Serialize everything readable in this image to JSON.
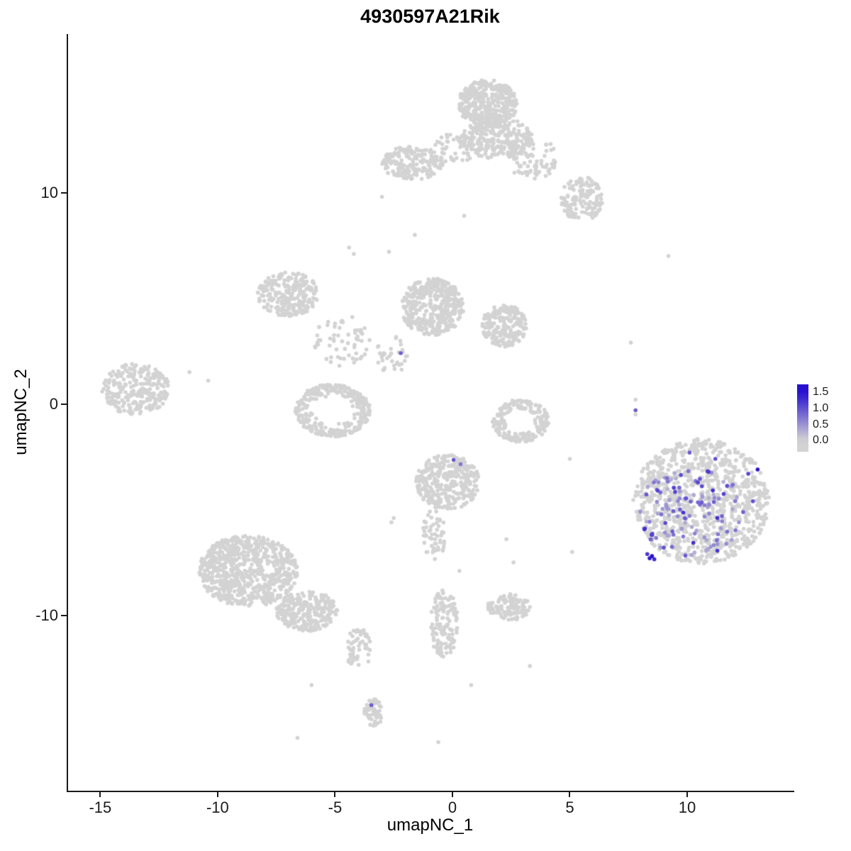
{
  "chart_data": {
    "type": "scatter",
    "title": "4930597A21Rik",
    "xlabel": "umapNC_1",
    "ylabel": "umapNC_2",
    "xlim": [
      -16.4,
      14.5
    ],
    "ylim": [
      -18.3,
      17.5
    ],
    "x_ticks": [
      "-15",
      "-10",
      "-5",
      "0",
      "5",
      "10"
    ],
    "x_tick_values": [
      -15,
      -10,
      -5,
      0,
      5,
      10
    ],
    "y_ticks": [
      "10",
      "0",
      "-10"
    ],
    "y_tick_values": [
      10,
      0,
      -10
    ],
    "grid": false,
    "point_radius_px": 2.8,
    "colors": {
      "low": "#D3D3D3",
      "high": "#2810D0",
      "axis": "#1a1a1a"
    },
    "value_domain": [
      0,
      1.5
    ],
    "legend": {
      "position": "right",
      "labels": [
        "1.5",
        "1.0",
        "0.5",
        "0.0"
      ],
      "values": [
        1.5,
        1.0,
        0.5,
        0.0
      ],
      "scale_min": -0.35,
      "scale_max": 1.75
    },
    "clusters": [
      {
        "name": "top-main-upper",
        "cx": 1.5,
        "cy": 14.2,
        "rx": 1.25,
        "ry": 1.15,
        "n": 380,
        "shape": "blob"
      },
      {
        "name": "top-main-lower",
        "cx": 1.9,
        "cy": 12.6,
        "rx": 1.5,
        "ry": 1.0,
        "n": 260,
        "shape": "blob"
      },
      {
        "name": "top-right-trail",
        "cx": 3.4,
        "cy": 11.6,
        "rx": 1.1,
        "ry": 1.0,
        "n": 70,
        "shape": "blob"
      },
      {
        "name": "top-right-cluster",
        "cx": 5.5,
        "cy": 9.7,
        "rx": 0.9,
        "ry": 1.05,
        "n": 150,
        "shape": "blob"
      },
      {
        "name": "top-left-arm",
        "cx": -1.7,
        "cy": 11.4,
        "rx": 1.3,
        "ry": 0.8,
        "n": 190,
        "shape": "blob"
      },
      {
        "name": "top-left-bridge",
        "cx": 0.1,
        "cy": 12.1,
        "rx": 0.9,
        "ry": 0.7,
        "n": 50,
        "shape": "blob"
      },
      {
        "name": "mid-left-lobe",
        "cx": -7.0,
        "cy": 5.2,
        "rx": 1.3,
        "ry": 1.05,
        "n": 230,
        "shape": "blob"
      },
      {
        "name": "mid-left-arm",
        "cx": -4.7,
        "cy": 3.0,
        "rx": 1.2,
        "ry": 1.2,
        "n": 60,
        "shape": "blob"
      },
      {
        "name": "mid-central",
        "cx": -0.85,
        "cy": 4.6,
        "rx": 1.35,
        "ry": 1.35,
        "n": 400,
        "shape": "blob"
      },
      {
        "name": "mid-right-lobe",
        "cx": 2.2,
        "cy": 3.7,
        "rx": 0.95,
        "ry": 1.0,
        "n": 210,
        "shape": "blob"
      },
      {
        "name": "mid-lower-ring",
        "cx": -5.1,
        "cy": -0.3,
        "rx": 1.6,
        "ry": 1.25,
        "n": 290,
        "shape": "ring"
      },
      {
        "name": "mid-bridge-dots",
        "cx": -2.5,
        "cy": 2.3,
        "rx": 0.8,
        "ry": 0.9,
        "n": 35,
        "shape": "blob"
      },
      {
        "name": "far-left",
        "cx": -13.5,
        "cy": 0.7,
        "rx": 1.45,
        "ry": 1.2,
        "n": 270,
        "shape": "blob"
      },
      {
        "name": "right-hook",
        "cx": 2.9,
        "cy": -0.8,
        "rx": 1.2,
        "ry": 1.0,
        "n": 210,
        "shape": "ring"
      },
      {
        "name": "center-lower",
        "cx": -0.2,
        "cy": -3.7,
        "rx": 1.35,
        "ry": 1.3,
        "n": 330,
        "shape": "blob"
      },
      {
        "name": "center-lower-tail",
        "cx": -0.8,
        "cy": -6.2,
        "rx": 0.5,
        "ry": 1.2,
        "n": 55,
        "shape": "blob"
      },
      {
        "name": "bottom-left-main",
        "cx": -8.7,
        "cy": -7.9,
        "rx": 2.1,
        "ry": 1.7,
        "n": 720,
        "shape": "blob"
      },
      {
        "name": "bottom-left-ext",
        "cx": -6.2,
        "cy": -9.8,
        "rx": 1.3,
        "ry": 0.95,
        "n": 260,
        "shape": "blob"
      },
      {
        "name": "bottom-left-trail",
        "cx": -4.0,
        "cy": -11.6,
        "rx": 0.55,
        "ry": 1.0,
        "n": 55,
        "shape": "blob"
      },
      {
        "name": "bottom-small",
        "cx": -3.35,
        "cy": -14.6,
        "rx": 0.4,
        "ry": 0.65,
        "n": 55,
        "shape": "blob"
      },
      {
        "name": "bottom-center-trail",
        "cx": -0.35,
        "cy": -10.4,
        "rx": 0.6,
        "ry": 1.6,
        "n": 130,
        "shape": "blob"
      },
      {
        "name": "bottom-center-right",
        "cx": 2.4,
        "cy": -9.6,
        "rx": 0.9,
        "ry": 0.65,
        "n": 120,
        "shape": "blob"
      },
      {
        "name": "right-main-gray",
        "cx": 10.6,
        "cy": -4.6,
        "rx": 2.9,
        "ry": 2.95,
        "n": 960,
        "shape": "blob"
      }
    ],
    "singles": [
      [
        -11.2,
        1.5
      ],
      [
        -10.4,
        1.1
      ],
      [
        -3.0,
        9.8
      ],
      [
        -2.7,
        7.2
      ],
      [
        -4.4,
        7.4
      ],
      [
        -4.2,
        7.1
      ],
      [
        0.5,
        8.9
      ],
      [
        -1.6,
        8.0
      ],
      [
        9.2,
        7.0
      ],
      [
        7.6,
        2.9
      ],
      [
        7.8,
        0.2
      ],
      [
        7.8,
        -0.5
      ],
      [
        5.0,
        -2.6
      ],
      [
        5.1,
        -7.0
      ],
      [
        2.3,
        -6.4
      ],
      [
        2.6,
        -7.5
      ],
      [
        0.3,
        -7.9
      ],
      [
        -2.5,
        -5.4
      ],
      [
        -2.6,
        -5.6
      ],
      [
        3.3,
        -12.4
      ],
      [
        0.8,
        -13.3
      ],
      [
        -6.0,
        -13.3
      ],
      [
        -6.6,
        -15.8
      ],
      [
        -0.6,
        -16.0
      ]
    ],
    "expressed": {
      "random_region": {
        "cx": 10.2,
        "cy": -5.1,
        "rx": 2.3,
        "ry": 2.1,
        "n": 130,
        "v_min": 0.25,
        "v_max": 1.3
      },
      "specials": [
        [
          13.0,
          -3.1,
          1.7
        ],
        [
          12.6,
          -3.3,
          1.1
        ],
        [
          12.8,
          -4.6,
          1.0
        ],
        [
          8.5,
          -7.2,
          1.5
        ],
        [
          8.4,
          -7.3,
          1.4
        ],
        [
          8.6,
          -7.35,
          1.3
        ],
        [
          8.3,
          -7.1,
          1.2
        ],
        [
          8.2,
          -5.9,
          1.2
        ],
        [
          9.0,
          -6.8,
          1.0
        ],
        [
          11.2,
          -2.6,
          1.0
        ],
        [
          10.1,
          -2.3,
          0.9
        ],
        [
          7.8,
          -0.3,
          0.9
        ],
        [
          -2.2,
          2.4,
          0.9
        ],
        [
          0.05,
          -2.65,
          0.95
        ],
        [
          0.35,
          -2.85,
          0.7
        ],
        [
          -3.45,
          -14.25,
          0.9
        ]
      ]
    }
  }
}
